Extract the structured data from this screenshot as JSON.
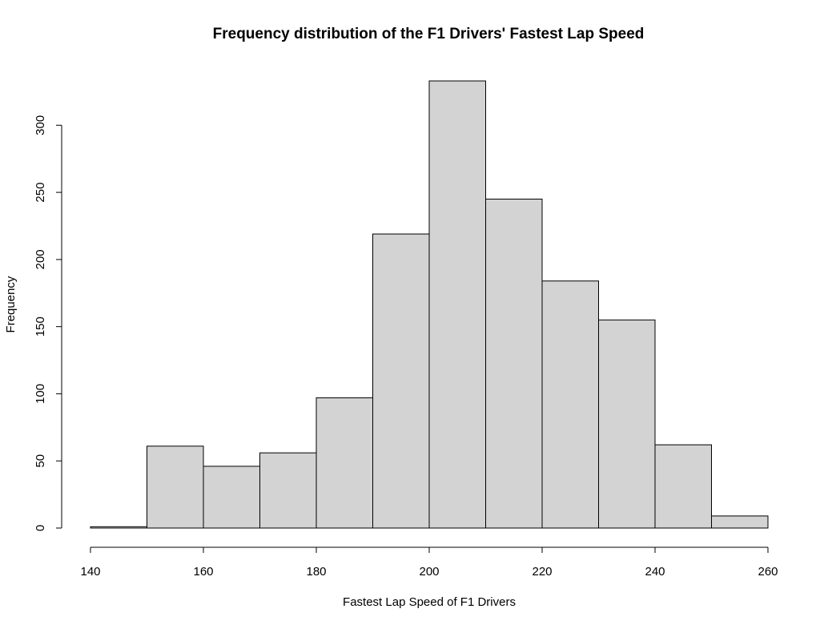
{
  "chart_data": {
    "type": "bar",
    "subtype": "histogram",
    "title": "Frequency distribution of the F1 Drivers' Fastest Lap Speed",
    "xlabel": "Fastest Lap Speed of F1 Drivers",
    "ylabel": "Frequency",
    "bin_edges": [
      140,
      150,
      160,
      170,
      180,
      190,
      200,
      210,
      220,
      230,
      240,
      250,
      260
    ],
    "values": [
      1,
      61,
      46,
      56,
      97,
      219,
      333,
      245,
      184,
      155,
      62,
      9
    ],
    "xlim": [
      140,
      260
    ],
    "ylim": [
      0,
      333
    ],
    "x_ticks": [
      140,
      160,
      180,
      200,
      220,
      240,
      260
    ],
    "y_ticks": [
      0,
      50,
      100,
      150,
      200,
      250,
      300
    ],
    "bar_color": "#d3d3d3",
    "grid": false,
    "legend": "none"
  }
}
